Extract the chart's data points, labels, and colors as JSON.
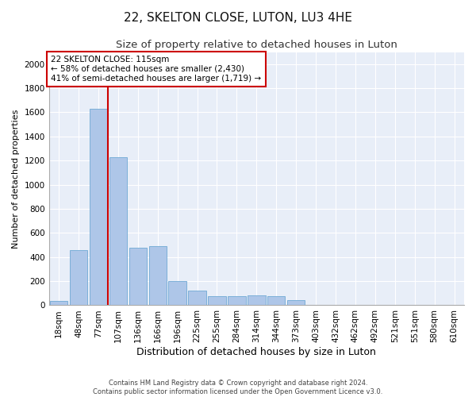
{
  "title": "22, SKELTON CLOSE, LUTON, LU3 4HE",
  "subtitle": "Size of property relative to detached houses in Luton",
  "xlabel": "Distribution of detached houses by size in Luton",
  "ylabel": "Number of detached properties",
  "categories": [
    "18sqm",
    "48sqm",
    "77sqm",
    "107sqm",
    "136sqm",
    "166sqm",
    "196sqm",
    "225sqm",
    "255sqm",
    "284sqm",
    "314sqm",
    "344sqm",
    "373sqm",
    "403sqm",
    "432sqm",
    "462sqm",
    "492sqm",
    "521sqm",
    "551sqm",
    "580sqm",
    "610sqm"
  ],
  "values": [
    35,
    460,
    1630,
    1230,
    480,
    490,
    200,
    120,
    75,
    75,
    85,
    75,
    40,
    0,
    0,
    0,
    0,
    0,
    0,
    0,
    0
  ],
  "bar_color": "#aec6e8",
  "bar_edge_color": "#6fa8d4",
  "background_color": "#e8eef8",
  "grid_color": "#ffffff",
  "vline_position": 2.5,
  "vline_color": "#cc0000",
  "annotation_text": "22 SKELTON CLOSE: 115sqm\n← 58% of detached houses are smaller (2,430)\n41% of semi-detached houses are larger (1,719) →",
  "annotation_box_color": "#cc0000",
  "ylim": [
    0,
    2100
  ],
  "yticks": [
    0,
    200,
    400,
    600,
    800,
    1000,
    1200,
    1400,
    1600,
    1800,
    2000
  ],
  "footer": "Contains HM Land Registry data © Crown copyright and database right 2024.\nContains public sector information licensed under the Open Government Licence v3.0.",
  "title_fontsize": 11,
  "subtitle_fontsize": 9.5,
  "tick_fontsize": 7.5,
  "ylabel_fontsize": 8,
  "xlabel_fontsize": 9
}
